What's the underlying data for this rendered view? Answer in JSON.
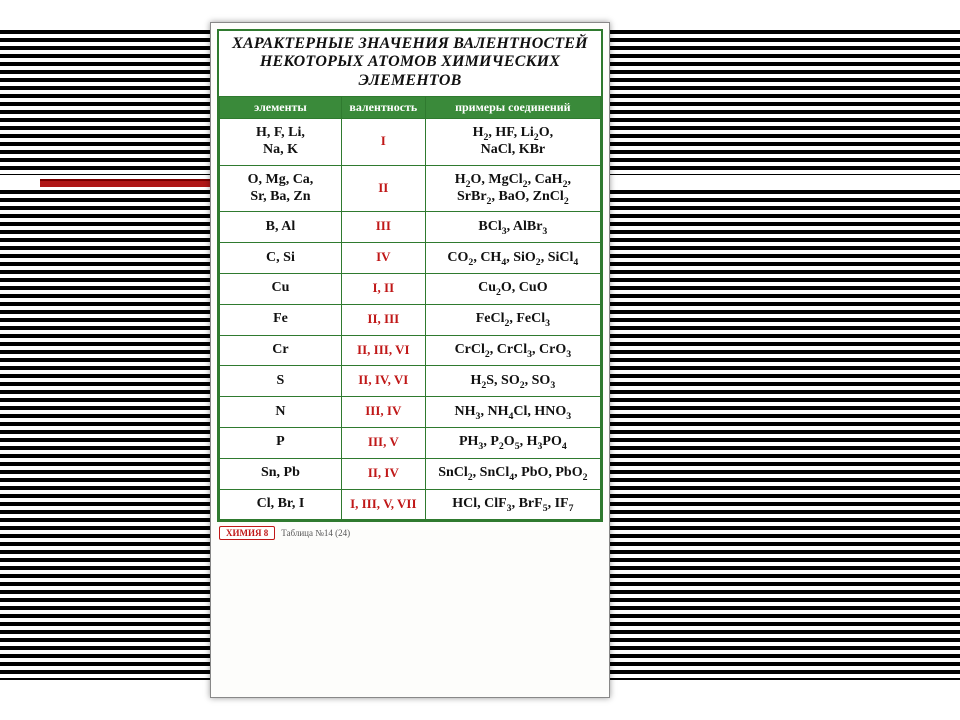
{
  "poster": {
    "title_line1": "ХАРАКТЕРНЫЕ ЗНАЧЕНИЯ ВАЛЕНТНОСТЕЙ",
    "title_line2": "НЕКОТОРЫХ АТОМОВ ХИМИЧЕСКИХ ЭЛЕМЕНТОВ",
    "columns": [
      "элементы",
      "валентность",
      "примеры соединений"
    ],
    "rows": [
      {
        "elements": "H, F, Li,<br>Na, K",
        "valence": "I",
        "examples": "H<sub>2</sub>, HF, Li<sub>2</sub>O,<br>NaCl, KBr"
      },
      {
        "elements": "O, Mg, Ca,<br>Sr, Ba, Zn",
        "valence": "II",
        "examples": "H<sub>2</sub>O, MgCl<sub>2</sub>, CaH<sub>2</sub>,<br>SrBr<sub>2</sub>, BaO, ZnCl<sub>2</sub>"
      },
      {
        "elements": "B, Al",
        "valence": "III",
        "examples": "BCl<sub>3</sub>, AlBr<sub>3</sub>"
      },
      {
        "elements": "C, Si",
        "valence": "IV",
        "examples": "CO<sub>2</sub>, CH<sub>4</sub>, SiO<sub>2</sub>, SiCl<sub>4</sub>"
      },
      {
        "elements": "Cu",
        "valence": "I, II",
        "examples": "Cu<sub>2</sub>O, CuO"
      },
      {
        "elements": "Fe",
        "valence": "II, III",
        "examples": "FeCl<sub>2</sub>, FeCl<sub>3</sub>"
      },
      {
        "elements": "Cr",
        "valence": "II, III, VI",
        "examples": "CrCl<sub>2</sub>, CrCl<sub>3</sub>, CrO<sub>3</sub>"
      },
      {
        "elements": "S",
        "valence": "II, IV, VI",
        "examples": "H<sub>2</sub>S, SO<sub>2</sub>, SO<sub>3</sub>"
      },
      {
        "elements": "N",
        "valence": "III, IV",
        "examples": "NH<sub>3</sub>, NH<sub>4</sub>Cl, HNO<sub>3</sub>"
      },
      {
        "elements": "P",
        "valence": "III, V",
        "examples": "PH<sub>3</sub>, P<sub>2</sub>O<sub>5</sub>, H<sub>3</sub>PO<sub>4</sub>"
      },
      {
        "elements": "Sn, Pb",
        "valence": "II, IV",
        "examples": "SnCl<sub>2</sub>, SnCl<sub>4</sub>, PbO, PbO<sub>2</sub>"
      },
      {
        "elements": "Cl, Br, I",
        "valence": "I, III, V, VII",
        "examples": "HCl, ClF<sub>3</sub>, BrF<sub>5</sub>, IF<sub>7</sub>"
      }
    ],
    "footer_chip": "ХИМИЯ 8",
    "footer_text": "Таблица №14 (24)"
  },
  "style": {
    "type": "table",
    "card_bg": "#fdfdfb",
    "border_color": "#2f7a2f",
    "header_bg": "#3a8a3a",
    "header_fg": "#ffffff",
    "valence_color": "#c01818",
    "text_color": "#111111",
    "col_widths_pct": [
      32,
      22,
      46
    ],
    "title_fontsize": 16,
    "header_fontsize": 12,
    "cell_fontsize": 14,
    "valence_fontsize": 13,
    "background_stripe_colors": [
      "#000000",
      "#ffffff"
    ],
    "red_bar_color": "#b01818"
  }
}
